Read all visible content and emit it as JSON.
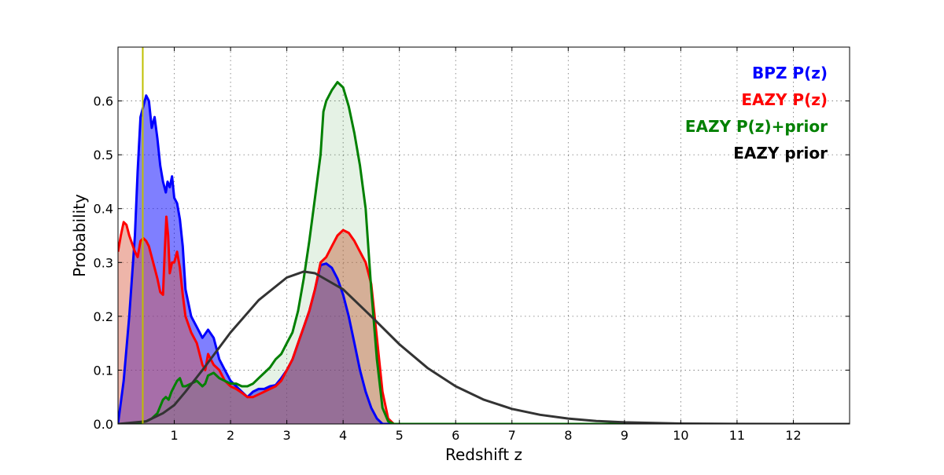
{
  "chart_data": {
    "type": "area",
    "xlabel": "Redshift z",
    "ylabel": "Probability",
    "xlim": [
      0,
      13
    ],
    "ylim": [
      0,
      0.7
    ],
    "xticks": [
      "1",
      "2",
      "3",
      "4",
      "5",
      "6",
      "7",
      "8",
      "9",
      "10",
      "11",
      "12"
    ],
    "yticks": [
      "0.0",
      "0.1",
      "0.2",
      "0.3",
      "0.4",
      "0.5",
      "0.6"
    ],
    "grid": true,
    "legend_position": "top-right",
    "vline": {
      "x": 0.44,
      "color": "#bfbf00"
    },
    "series": [
      {
        "name": "BPZ P(z)",
        "color": "#0000ff",
        "fill": "#0000ff",
        "fill_opacity": 0.5,
        "points": [
          [
            0.0,
            0.0
          ],
          [
            0.1,
            0.08
          ],
          [
            0.2,
            0.2
          ],
          [
            0.3,
            0.35
          ],
          [
            0.35,
            0.47
          ],
          [
            0.4,
            0.57
          ],
          [
            0.45,
            0.59
          ],
          [
            0.5,
            0.61
          ],
          [
            0.55,
            0.6
          ],
          [
            0.6,
            0.55
          ],
          [
            0.65,
            0.57
          ],
          [
            0.7,
            0.53
          ],
          [
            0.75,
            0.48
          ],
          [
            0.8,
            0.45
          ],
          [
            0.85,
            0.43
          ],
          [
            0.88,
            0.45
          ],
          [
            0.92,
            0.44
          ],
          [
            0.96,
            0.46
          ],
          [
            1.0,
            0.42
          ],
          [
            1.05,
            0.41
          ],
          [
            1.1,
            0.38
          ],
          [
            1.15,
            0.33
          ],
          [
            1.2,
            0.25
          ],
          [
            1.3,
            0.2
          ],
          [
            1.4,
            0.18
          ],
          [
            1.5,
            0.16
          ],
          [
            1.6,
            0.175
          ],
          [
            1.7,
            0.16
          ],
          [
            1.8,
            0.12
          ],
          [
            1.9,
            0.1
          ],
          [
            2.0,
            0.08
          ],
          [
            2.1,
            0.07
          ],
          [
            2.2,
            0.06
          ],
          [
            2.3,
            0.05
          ],
          [
            2.4,
            0.06
          ],
          [
            2.5,
            0.065
          ],
          [
            2.6,
            0.065
          ],
          [
            2.7,
            0.07
          ],
          [
            2.8,
            0.072
          ],
          [
            2.9,
            0.085
          ],
          [
            3.0,
            0.1
          ],
          [
            3.1,
            0.12
          ],
          [
            3.2,
            0.15
          ],
          [
            3.3,
            0.18
          ],
          [
            3.4,
            0.21
          ],
          [
            3.5,
            0.25
          ],
          [
            3.6,
            0.295
          ],
          [
            3.7,
            0.298
          ],
          [
            3.8,
            0.29
          ],
          [
            3.9,
            0.27
          ],
          [
            4.0,
            0.24
          ],
          [
            4.1,
            0.2
          ],
          [
            4.2,
            0.15
          ],
          [
            4.3,
            0.1
          ],
          [
            4.4,
            0.06
          ],
          [
            4.5,
            0.03
          ],
          [
            4.6,
            0.01
          ],
          [
            4.7,
            0.0
          ],
          [
            13.0,
            0.0
          ]
        ]
      },
      {
        "name": "EAZY P(z)",
        "color": "#ff0000",
        "fill": "#d95a40",
        "fill_opacity": 0.45,
        "points": [
          [
            0.0,
            0.32
          ],
          [
            0.05,
            0.35
          ],
          [
            0.1,
            0.375
          ],
          [
            0.15,
            0.37
          ],
          [
            0.2,
            0.35
          ],
          [
            0.25,
            0.335
          ],
          [
            0.3,
            0.32
          ],
          [
            0.35,
            0.31
          ],
          [
            0.4,
            0.34
          ],
          [
            0.45,
            0.345
          ],
          [
            0.5,
            0.34
          ],
          [
            0.55,
            0.33
          ],
          [
            0.6,
            0.31
          ],
          [
            0.65,
            0.29
          ],
          [
            0.7,
            0.27
          ],
          [
            0.75,
            0.245
          ],
          [
            0.8,
            0.24
          ],
          [
            0.83,
            0.32
          ],
          [
            0.86,
            0.385
          ],
          [
            0.89,
            0.35
          ],
          [
            0.92,
            0.28
          ],
          [
            0.96,
            0.3
          ],
          [
            1.0,
            0.3
          ],
          [
            1.05,
            0.32
          ],
          [
            1.1,
            0.29
          ],
          [
            1.15,
            0.24
          ],
          [
            1.2,
            0.2
          ],
          [
            1.3,
            0.17
          ],
          [
            1.4,
            0.15
          ],
          [
            1.5,
            0.11
          ],
          [
            1.55,
            0.1
          ],
          [
            1.6,
            0.13
          ],
          [
            1.7,
            0.11
          ],
          [
            1.8,
            0.1
          ],
          [
            1.9,
            0.08
          ],
          [
            2.0,
            0.07
          ],
          [
            2.1,
            0.065
          ],
          [
            2.2,
            0.058
          ],
          [
            2.3,
            0.05
          ],
          [
            2.4,
            0.05
          ],
          [
            2.5,
            0.055
          ],
          [
            2.6,
            0.06
          ],
          [
            2.7,
            0.065
          ],
          [
            2.8,
            0.07
          ],
          [
            2.9,
            0.08
          ],
          [
            3.0,
            0.1
          ],
          [
            3.1,
            0.12
          ],
          [
            3.2,
            0.15
          ],
          [
            3.3,
            0.18
          ],
          [
            3.4,
            0.21
          ],
          [
            3.5,
            0.25
          ],
          [
            3.6,
            0.3
          ],
          [
            3.7,
            0.31
          ],
          [
            3.8,
            0.33
          ],
          [
            3.9,
            0.35
          ],
          [
            4.0,
            0.36
          ],
          [
            4.1,
            0.355
          ],
          [
            4.2,
            0.34
          ],
          [
            4.3,
            0.32
          ],
          [
            4.4,
            0.3
          ],
          [
            4.5,
            0.26
          ],
          [
            4.6,
            0.16
          ],
          [
            4.7,
            0.06
          ],
          [
            4.8,
            0.01
          ],
          [
            4.9,
            0.0
          ],
          [
            13.0,
            0.0
          ]
        ]
      },
      {
        "name": "EAZY P(z)+prior",
        "color": "#008000",
        "fill": "#008000",
        "fill_opacity": 0.1,
        "points": [
          [
            0.0,
            0.0
          ],
          [
            0.3,
            0.0
          ],
          [
            0.5,
            0.005
          ],
          [
            0.6,
            0.01
          ],
          [
            0.7,
            0.02
          ],
          [
            0.8,
            0.045
          ],
          [
            0.85,
            0.05
          ],
          [
            0.9,
            0.045
          ],
          [
            0.95,
            0.06
          ],
          [
            1.0,
            0.07
          ],
          [
            1.05,
            0.08
          ],
          [
            1.1,
            0.085
          ],
          [
            1.15,
            0.07
          ],
          [
            1.2,
            0.07
          ],
          [
            1.3,
            0.075
          ],
          [
            1.4,
            0.08
          ],
          [
            1.5,
            0.07
          ],
          [
            1.55,
            0.075
          ],
          [
            1.6,
            0.09
          ],
          [
            1.7,
            0.095
          ],
          [
            1.8,
            0.085
          ],
          [
            1.9,
            0.08
          ],
          [
            2.0,
            0.075
          ],
          [
            2.1,
            0.075
          ],
          [
            2.2,
            0.07
          ],
          [
            2.3,
            0.07
          ],
          [
            2.4,
            0.075
          ],
          [
            2.5,
            0.085
          ],
          [
            2.6,
            0.095
          ],
          [
            2.7,
            0.105
          ],
          [
            2.8,
            0.12
          ],
          [
            2.9,
            0.13
          ],
          [
            3.0,
            0.15
          ],
          [
            3.1,
            0.17
          ],
          [
            3.2,
            0.21
          ],
          [
            3.3,
            0.27
          ],
          [
            3.4,
            0.34
          ],
          [
            3.5,
            0.42
          ],
          [
            3.6,
            0.5
          ],
          [
            3.65,
            0.58
          ],
          [
            3.7,
            0.6
          ],
          [
            3.8,
            0.62
          ],
          [
            3.9,
            0.635
          ],
          [
            4.0,
            0.625
          ],
          [
            4.1,
            0.59
          ],
          [
            4.2,
            0.54
          ],
          [
            4.3,
            0.48
          ],
          [
            4.4,
            0.4
          ],
          [
            4.5,
            0.25
          ],
          [
            4.6,
            0.12
          ],
          [
            4.7,
            0.03
          ],
          [
            4.8,
            0.005
          ],
          [
            4.9,
            0.0
          ],
          [
            13.0,
            0.0
          ]
        ]
      },
      {
        "name": "EAZY prior",
        "color": "#333333",
        "fill": null,
        "fill_opacity": 0,
        "points": [
          [
            0.0,
            0.0
          ],
          [
            0.5,
            0.005
          ],
          [
            0.8,
            0.02
          ],
          [
            1.0,
            0.035
          ],
          [
            1.2,
            0.06
          ],
          [
            1.5,
            0.1
          ],
          [
            2.0,
            0.17
          ],
          [
            2.5,
            0.23
          ],
          [
            3.0,
            0.272
          ],
          [
            3.3,
            0.283
          ],
          [
            3.5,
            0.28
          ],
          [
            4.0,
            0.25
          ],
          [
            4.5,
            0.2
          ],
          [
            5.0,
            0.148
          ],
          [
            5.5,
            0.104
          ],
          [
            6.0,
            0.07
          ],
          [
            6.5,
            0.045
          ],
          [
            7.0,
            0.028
          ],
          [
            7.5,
            0.017
          ],
          [
            8.0,
            0.01
          ],
          [
            8.5,
            0.0055
          ],
          [
            9.0,
            0.003
          ],
          [
            10.0,
            0.0008
          ],
          [
            11.0,
            0.0002
          ],
          [
            12.0,
            0.0
          ],
          [
            13.0,
            0.0
          ]
        ]
      }
    ]
  }
}
